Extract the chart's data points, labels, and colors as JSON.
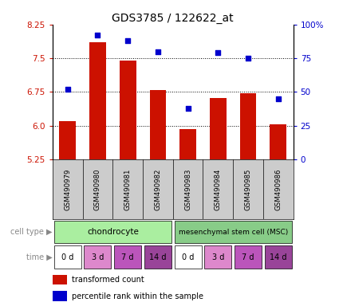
{
  "title": "GDS3785 / 122622_at",
  "samples": [
    "GSM490979",
    "GSM490980",
    "GSM490981",
    "GSM490982",
    "GSM490983",
    "GSM490984",
    "GSM490985",
    "GSM490986"
  ],
  "bar_values": [
    6.1,
    7.85,
    7.45,
    6.8,
    5.93,
    6.62,
    6.73,
    6.03
  ],
  "scatter_values": [
    52,
    92,
    88,
    80,
    38,
    79,
    75,
    45
  ],
  "ylim_left": [
    5.25,
    8.25
  ],
  "ylim_right": [
    0,
    100
  ],
  "yticks_left": [
    5.25,
    6.0,
    6.75,
    7.5,
    8.25
  ],
  "yticks_right": [
    0,
    25,
    50,
    75,
    100
  ],
  "ytick_labels_right": [
    "0",
    "25",
    "50",
    "75",
    "100%"
  ],
  "bar_color": "#cc1100",
  "scatter_color": "#0000cc",
  "bar_width": 0.55,
  "cell_type_labels": [
    "chondrocyte",
    "mesenchymal stem cell (MSC)"
  ],
  "cell_type_color_light": "#aaeea0",
  "cell_type_color_dark": "#88cc88",
  "time_labels": [
    "0 d",
    "3 d",
    "7 d",
    "14 d",
    "0 d",
    "3 d",
    "7 d",
    "14 d"
  ],
  "time_colors": [
    "#ffffff",
    "#dd88cc",
    "#bb55bb",
    "#994499",
    "#ffffff",
    "#dd88cc",
    "#bb55bb",
    "#994499"
  ],
  "legend_bar_label": "transformed count",
  "legend_scatter_label": "percentile rank within the sample",
  "background_color": "#ffffff",
  "label_area_color": "#cccccc",
  "title_fontsize": 10
}
